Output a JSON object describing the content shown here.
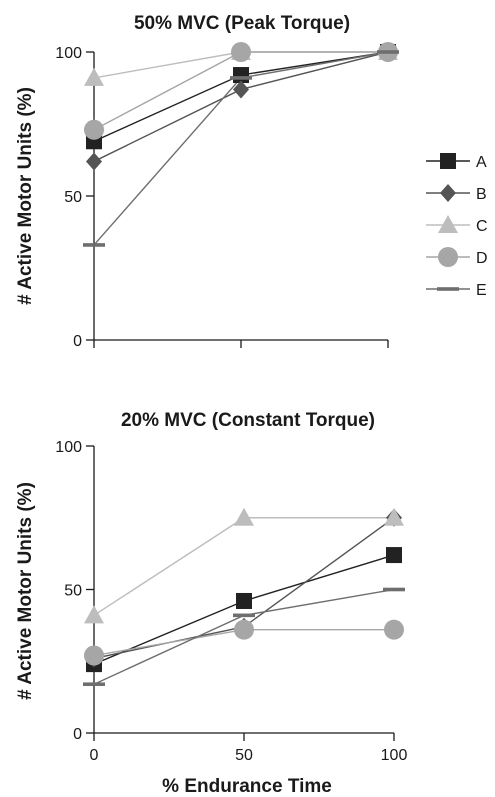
{
  "chart_data": [
    {
      "type": "line",
      "title": "50% MVC (Peak Torque)",
      "xlabel": "",
      "ylabel": "# Active Motor Units  (%)",
      "xlim": [
        0,
        100
      ],
      "ylim": [
        0,
        100
      ],
      "x_ticks": [
        0,
        50,
        100
      ],
      "x_tick_labels": [
        "",
        "",
        ""
      ],
      "y_ticks": [
        0,
        50,
        100
      ],
      "y_tick_labels": [
        "0",
        "50",
        "100"
      ],
      "grid": false,
      "legend_position": "right",
      "x": [
        0,
        50,
        100
      ],
      "series": [
        {
          "name": "A",
          "values": [
            69,
            92,
            100
          ],
          "color": "#222222",
          "marker": "square"
        },
        {
          "name": "B",
          "values": [
            62,
            87,
            100
          ],
          "color": "#555555",
          "marker": "diamond"
        },
        {
          "name": "C",
          "values": [
            91,
            100,
            100
          ],
          "color": "#bdbdbd",
          "marker": "triangle"
        },
        {
          "name": "D",
          "values": [
            73,
            100,
            100
          ],
          "color": "#a6a6a6",
          "marker": "circle"
        },
        {
          "name": "E",
          "values": [
            33,
            91,
            100
          ],
          "color": "#6e6e6e",
          "marker": "dash"
        }
      ]
    },
    {
      "type": "line",
      "title": "20% MVC (Constant Torque)",
      "xlabel": "% Endurance Time",
      "ylabel": "# Active Motor Units  (%)",
      "xlim": [
        0,
        100
      ],
      "ylim": [
        0,
        100
      ],
      "x_ticks": [
        0,
        50,
        100
      ],
      "x_tick_labels": [
        "0",
        "50",
        "100"
      ],
      "y_ticks": [
        0,
        50,
        100
      ],
      "y_tick_labels": [
        "0",
        "50",
        "100"
      ],
      "grid": false,
      "x": [
        0,
        50,
        100
      ],
      "series": [
        {
          "name": "A",
          "values": [
            24,
            46,
            62
          ],
          "color": "#222222",
          "marker": "square"
        },
        {
          "name": "B",
          "values": [
            26,
            37,
            75
          ],
          "color": "#555555",
          "marker": "diamond"
        },
        {
          "name": "C",
          "values": [
            41,
            75,
            75
          ],
          "color": "#bdbdbd",
          "marker": "triangle"
        },
        {
          "name": "D",
          "values": [
            27,
            36,
            36
          ],
          "color": "#a6a6a6",
          "marker": "circle"
        },
        {
          "name": "E",
          "values": [
            17,
            41,
            50
          ],
          "color": "#6e6e6e",
          "marker": "dash"
        }
      ]
    }
  ]
}
